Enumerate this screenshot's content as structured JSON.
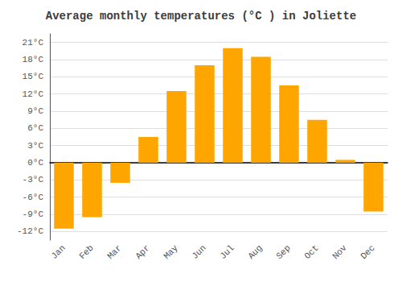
{
  "chart_data": {
    "type": "bar",
    "title": "Average monthly temperatures (°C ) in Joliette",
    "categories": [
      "Jan",
      "Feb",
      "Mar",
      "Apr",
      "May",
      "Jun",
      "Jul",
      "Aug",
      "Sep",
      "Oct",
      "Nov",
      "Dec"
    ],
    "values": [
      -11.5,
      -9.5,
      -3.5,
      4.5,
      12.5,
      17.0,
      20.0,
      18.5,
      13.5,
      7.5,
      0.5,
      -8.5
    ],
    "color": "#FFA500",
    "ylim": [
      -13.5,
      22.5
    ],
    "yticks": [
      {
        "value": -12,
        "label": "-12°C"
      },
      {
        "value": -9,
        "label": "-9°C"
      },
      {
        "value": -6,
        "label": "-6°C"
      },
      {
        "value": -3,
        "label": "-3°C"
      },
      {
        "value": 0,
        "label": "0°C"
      },
      {
        "value": 3,
        "label": "3°C"
      },
      {
        "value": 6,
        "label": "6°C"
      },
      {
        "value": 9,
        "label": "9°C"
      },
      {
        "value": 12,
        "label": "12°C"
      },
      {
        "value": 15,
        "label": "15°C"
      },
      {
        "value": 18,
        "label": "18°C"
      },
      {
        "value": 21,
        "label": "21°C"
      }
    ],
    "grid": true
  }
}
